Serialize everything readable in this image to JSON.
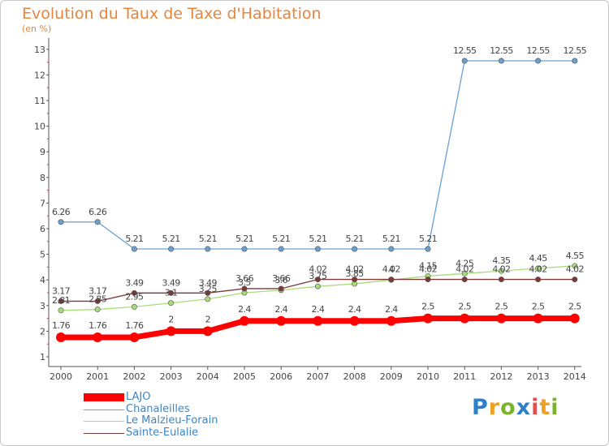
{
  "title": "Evolution du Taux de Taxe d'Habitation",
  "unit": "(en %)",
  "logo": {
    "p": "P",
    "r": "r",
    "o": "o",
    "x": "x",
    "i": "i",
    "t": "t",
    "i2": "i"
  },
  "chart_data": {
    "type": "line",
    "x": [
      "2000",
      "2001",
      "2002",
      "2003",
      "2004",
      "2005",
      "2006",
      "2007",
      "2008",
      "2009",
      "2010",
      "2011",
      "2012",
      "2013",
      "2014"
    ],
    "ylim": [
      1,
      13
    ],
    "yticks": [
      "1",
      "2",
      "3",
      "4",
      "5",
      "6",
      "7",
      "8",
      "9",
      "10",
      "11",
      "12",
      "13"
    ],
    "grid": false,
    "legend_placement": "bottom-left",
    "series": [
      {
        "name": "LAJO",
        "color": "#ff0000",
        "values": [
          1.76,
          1.76,
          1.76,
          2,
          2,
          2.4,
          2.4,
          2.4,
          2.4,
          2.4,
          2.5,
          2.5,
          2.5,
          2.5,
          2.5
        ],
        "labels": [
          "1.76",
          "1.76",
          "1.76",
          "2",
          "2",
          "2.4",
          "2.4",
          "2.4",
          "2.4",
          "2.4",
          "2.5",
          "2.5",
          "2.5",
          "2.5",
          "2.5"
        ]
      },
      {
        "name": "Chanaleilles",
        "color": "#6aa0d0",
        "values": [
          6.26,
          6.26,
          5.21,
          5.21,
          5.21,
          5.21,
          5.21,
          5.21,
          5.21,
          5.21,
          5.21,
          12.55,
          12.55,
          12.55,
          12.55
        ],
        "labels": [
          "6.26",
          "6.26",
          "5.21",
          "5.21",
          "5.21",
          "5.21",
          "5.21",
          "5.21",
          "5.21",
          "5.21",
          "5.21",
          "12.55",
          "12.55",
          "12.55",
          "12.55"
        ]
      },
      {
        "name": "Le Malzieu-Forain",
        "color": "#a8dc78",
        "values": [
          2.81,
          2.85,
          2.95,
          3.1,
          3.25,
          3.5,
          3.6,
          3.75,
          3.85,
          4,
          4.15,
          4.25,
          4.35,
          4.45,
          4.55
        ],
        "labels": [
          "2.81",
          "2.85",
          "2.95",
          "3.1",
          "3.25",
          "3.5",
          "3.6",
          "3.75",
          "3.85",
          "4",
          "4.15",
          "4.25",
          "4.35",
          "4.45",
          "4.55"
        ]
      },
      {
        "name": "Sainte-Eulalie",
        "color": "#7a3a3a",
        "values": [
          3.17,
          3.17,
          3.49,
          3.49,
          3.49,
          3.66,
          3.66,
          4.02,
          4.02,
          4.02,
          4.02,
          4.02,
          4.02,
          4.02,
          4.02
        ],
        "labels": [
          "3.17",
          "3.17",
          "3.49",
          "3.49",
          "3.49",
          "3.66",
          "3.66",
          "4.02",
          "4.02",
          "4.02",
          "4.02",
          "4.02",
          "4.02",
          "4.02",
          "4.02"
        ]
      }
    ]
  }
}
